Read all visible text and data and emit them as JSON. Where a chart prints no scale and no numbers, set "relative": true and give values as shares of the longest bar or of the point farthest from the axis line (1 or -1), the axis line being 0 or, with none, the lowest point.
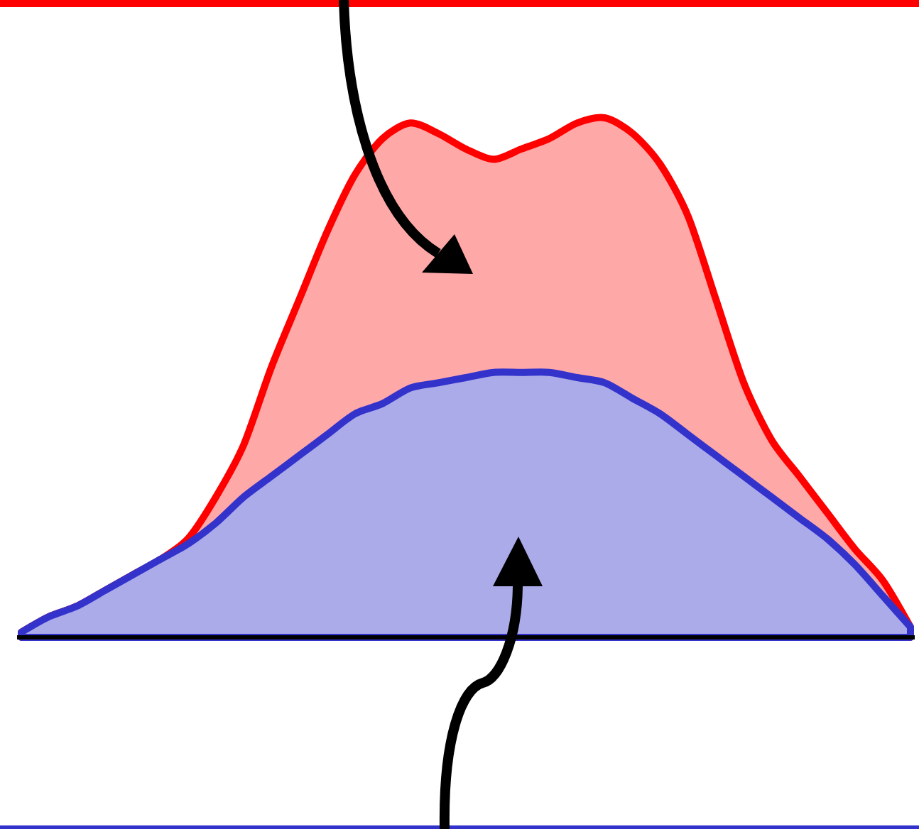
{
  "chart_data": {
    "type": "area",
    "relative": true,
    "categories": [
      null,
      null,
      null,
      null,
      null,
      null,
      null,
      null,
      null,
      null,
      null,
      null,
      null,
      null,
      null,
      null,
      null,
      null,
      null,
      null,
      null,
      null,
      null,
      null,
      null,
      null,
      null,
      null,
      null,
      null,
      null,
      null,
      null
    ],
    "series": [
      {
        "color": "#ff0000",
        "values": [
          0.01,
          0.04,
          0.06,
          0.09,
          0.12,
          0.15,
          0.19,
          0.27,
          0.37,
          0.52,
          0.65,
          0.78,
          0.89,
          0.96,
          0.99,
          0.97,
          0.94,
          0.92,
          0.94,
          0.96,
          0.99,
          1,
          0.97,
          0.91,
          0.81,
          0.65,
          0.49,
          0.38,
          0.31,
          0.24,
          0.17,
          0.11,
          0.02
        ]
      },
      {
        "color": "#3333cc",
        "values": [
          0.01,
          0.04,
          0.06,
          0.09,
          0.12,
          0.15,
          0.18,
          0.22,
          0.27,
          0.31,
          0.35,
          0.39,
          0.43,
          0.45,
          0.48,
          0.49,
          0.5,
          0.51,
          0.51,
          0.51,
          0.5,
          0.49,
          0.46,
          0.43,
          0.39,
          0.35,
          0.31,
          0.27,
          0.23,
          0.19,
          0.14,
          0.08,
          0.02
        ]
      }
    ]
  }
}
